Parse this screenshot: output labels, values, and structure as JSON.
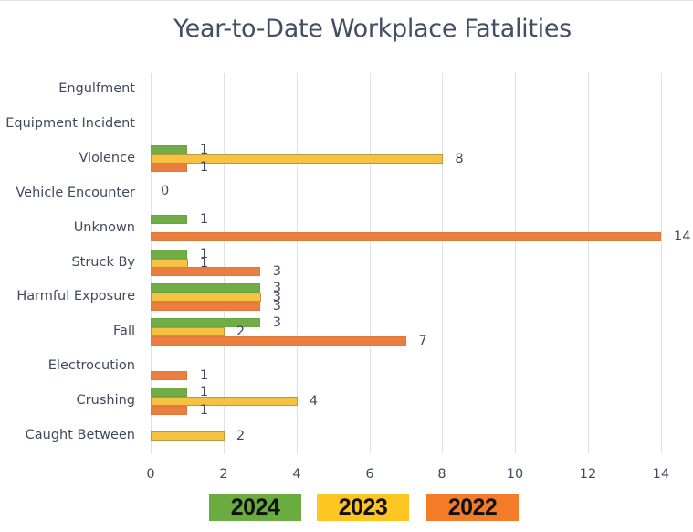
{
  "chart_data": {
    "type": "bar",
    "orientation": "horizontal",
    "title": "Year-to-Date Workplace Fatalities",
    "xlabel": "",
    "ylabel": "",
    "xlim": [
      0,
      14
    ],
    "x_ticks": [
      0,
      2,
      4,
      6,
      8,
      10,
      12,
      14
    ],
    "grid": true,
    "legend_position": "bottom",
    "categories": [
      "Engulfment",
      "Equipment Incident",
      "Violence",
      "Vehicle Encounter",
      "Unknown",
      "Struck By",
      "Harmful Exposure",
      "Fall",
      "Electrocution",
      "Crushing",
      "Caught Between"
    ],
    "series": [
      {
        "name": "2024",
        "color": "#70ad47",
        "values": [
          null,
          null,
          1,
          null,
          1,
          1,
          3,
          3,
          null,
          1,
          null
        ]
      },
      {
        "name": "2023",
        "color": "#f7c244",
        "values": [
          null,
          null,
          8,
          null,
          null,
          1,
          3,
          2,
          null,
          4,
          2
        ]
      },
      {
        "name": "2022",
        "color": "#e97e3f",
        "values": [
          null,
          null,
          1,
          0,
          14,
          3,
          3,
          7,
          1,
          1,
          null
        ]
      }
    ]
  },
  "legend": [
    {
      "label": "2024",
      "color": "#6aac3f"
    },
    {
      "label": "2023",
      "color": "#ffc520"
    },
    {
      "label": "2022",
      "color": "#f47c29"
    }
  ]
}
